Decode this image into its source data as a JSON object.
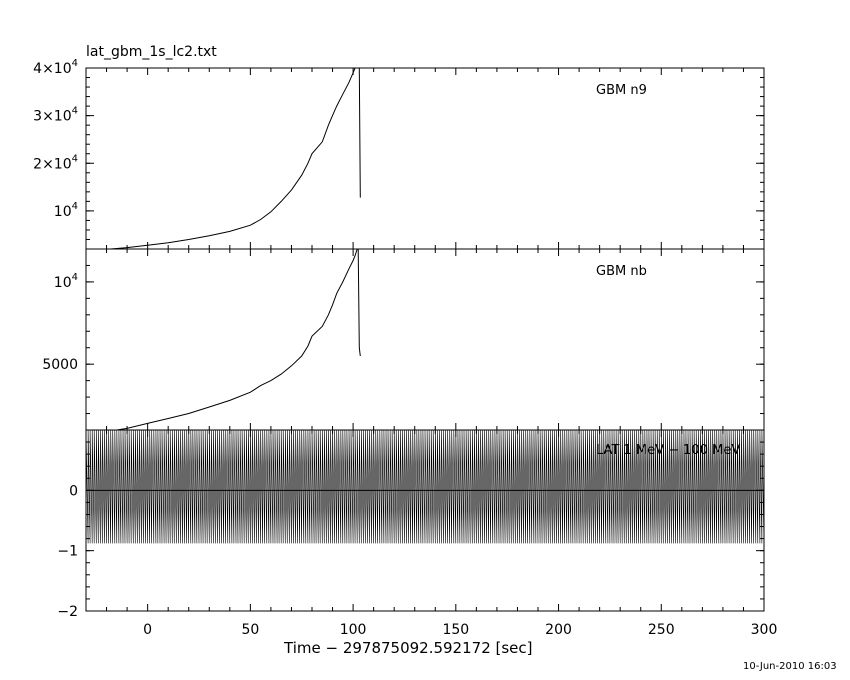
{
  "file_title": "lat_gbm_1s_lc2.txt",
  "timestamp": "10-Jun-2010 16:03",
  "chart_data": [
    {
      "type": "line",
      "panel": "top",
      "series_label": "GBM n9",
      "ylim": [
        2000,
        40000
      ],
      "yticks": [
        {
          "v": 10000,
          "base": "10",
          "exp": "4"
        },
        {
          "v": 20000,
          "pre": "2×",
          "base": "10",
          "exp": "4"
        },
        {
          "v": 30000,
          "pre": "3×",
          "base": "10",
          "exp": "4"
        },
        {
          "v": 40000,
          "pre": "4×",
          "base": "10",
          "exp": "4"
        }
      ],
      "x": [
        -18,
        -10,
        0,
        10,
        20,
        30,
        40,
        50,
        55,
        60,
        65,
        70,
        75,
        78,
        80,
        85,
        88,
        90,
        92,
        95,
        98,
        100,
        101,
        102,
        103,
        103.5
      ],
      "y": [
        2000,
        2300,
        2800,
        3300,
        4000,
        4800,
        5700,
        7000,
        8200,
        9800,
        12000,
        14400,
        17500,
        20000,
        22000,
        24500,
        28000,
        30000,
        32000,
        34500,
        37000,
        39000,
        40000,
        40000,
        40000,
        12800
      ]
    },
    {
      "type": "line",
      "panel": "middle",
      "series_label": "GBM nb",
      "ylim": [
        1000,
        12000
      ],
      "yticks": [
        {
          "v": 5000,
          "text": "5000"
        },
        {
          "v": 10000,
          "base": "10",
          "exp": "4"
        }
      ],
      "x": [
        -15,
        -10,
        0,
        10,
        20,
        30,
        40,
        50,
        55,
        60,
        65,
        70,
        75,
        78,
        80,
        85,
        88,
        90,
        92,
        95,
        98,
        100,
        101,
        102,
        102.5,
        103,
        103.5
      ],
      "y": [
        1000,
        1100,
        1400,
        1700,
        2000,
        2400,
        2800,
        3300,
        3700,
        4000,
        4400,
        4900,
        5500,
        6100,
        6700,
        7300,
        8000,
        8600,
        9300,
        10000,
        10800,
        11300,
        11600,
        12000,
        12000,
        6000,
        5500
      ]
    },
    {
      "type": "line",
      "panel": "bottom",
      "series_label": "LAT 1 MeV − 100 MeV",
      "ylim": [
        -2,
        1
      ],
      "yticks": [
        {
          "v": 0,
          "text": "0"
        },
        {
          "v": -1,
          "text": "−1"
        },
        {
          "v": -2,
          "text": "−2"
        }
      ],
      "oscillation": {
        "high": 1.0,
        "low": -0.88,
        "step": 1
      },
      "zero_line": 0,
      "xlim": [
        -30,
        300
      ],
      "xticks": [
        0,
        50,
        100,
        150,
        200,
        250,
        300
      ],
      "xlabel": "Time − 297875092.592172 [sec]"
    }
  ]
}
